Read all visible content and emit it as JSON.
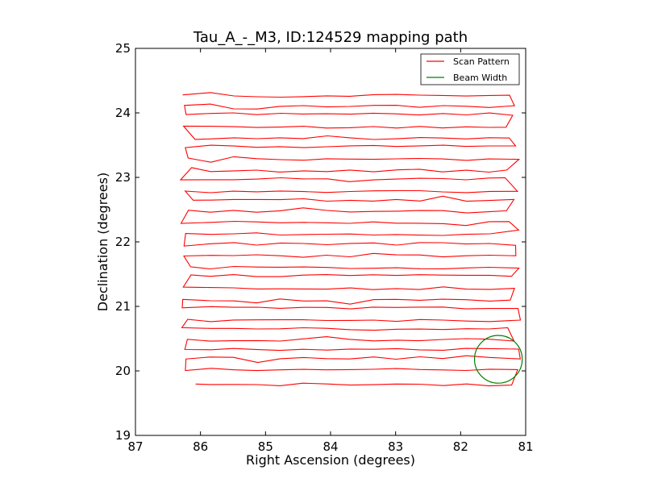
{
  "chart_data": {
    "type": "line",
    "title": "Tau_A_-_M3, ID:124529 mapping path",
    "xlabel": "Right Ascension (degrees)",
    "ylabel": "Declination (degrees)",
    "xlim": [
      87,
      81
    ],
    "ylim": [
      19,
      25
    ],
    "x_ticks": [
      87,
      86,
      85,
      84,
      83,
      82,
      81
    ],
    "y_ticks": [
      19,
      20,
      21,
      22,
      23,
      24,
      25
    ],
    "x_tick_labels": [
      "87",
      "86",
      "85",
      "84",
      "83",
      "82",
      "81"
    ],
    "y_tick_labels": [
      "19",
      "20",
      "21",
      "22",
      "23",
      "24",
      "25"
    ],
    "grid": false,
    "legend_position": "top-right",
    "legend": [
      "Scan Pattern",
      "Beam Width"
    ],
    "colors": {
      "scan": "#ff0000",
      "beam": "#008000"
    },
    "scan_pattern": {
      "name": "Scan Pattern",
      "ra_start": 86.2,
      "ra_end": 81.2,
      "dec_rows": [
        19.78,
        20.02,
        20.2,
        20.33,
        20.48,
        20.65,
        20.78,
        20.98,
        21.1,
        21.28,
        21.48,
        21.6,
        21.78,
        21.97,
        22.12,
        22.3,
        22.48,
        22.65,
        22.78,
        22.98,
        23.1,
        23.28,
        23.48,
        23.6,
        23.78,
        23.98,
        24.1,
        24.27
      ]
    },
    "beam_width": {
      "name": "Beam Width",
      "center_ra": 81.42,
      "center_dec": 20.18,
      "radius_deg": 0.37
    }
  }
}
